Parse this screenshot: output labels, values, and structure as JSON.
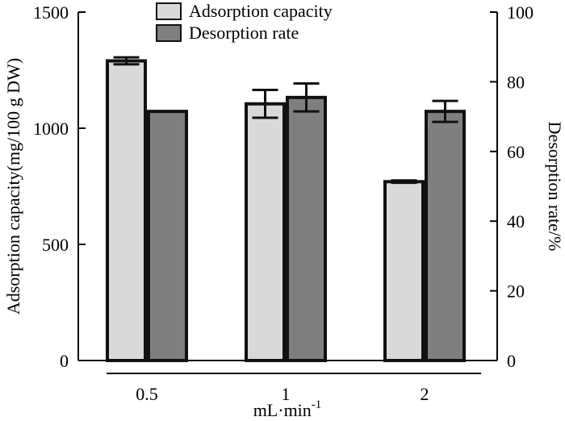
{
  "chart_data": {
    "type": "bar",
    "categories": [
      "0.5",
      "1",
      "2"
    ],
    "xlabel": "mL·min",
    "xlabel_superscript": "-1",
    "y_left": {
      "label": "Adsorption capacity(mg/100 g DW)",
      "lim": [
        0,
        1500
      ],
      "ticks": [
        0,
        500,
        1000,
        1500
      ]
    },
    "y_right": {
      "label": "Desorption rate/%",
      "lim": [
        0,
        100
      ],
      "ticks": [
        0,
        20,
        40,
        60,
        80,
        100
      ]
    },
    "series": [
      {
        "name": "Adsorption capacity",
        "axis": "left",
        "color": "#d9d9d9",
        "values": [
          1290,
          1105,
          770
        ],
        "errors": [
          15,
          60,
          5
        ]
      },
      {
        "name": "Desorption rate",
        "axis": "right",
        "color": "#7f7f7f",
        "values": [
          71.5,
          75.5,
          71.5
        ],
        "errors": [
          0,
          4,
          3
        ]
      }
    ],
    "legend_position": "top-center",
    "grid": false
  }
}
